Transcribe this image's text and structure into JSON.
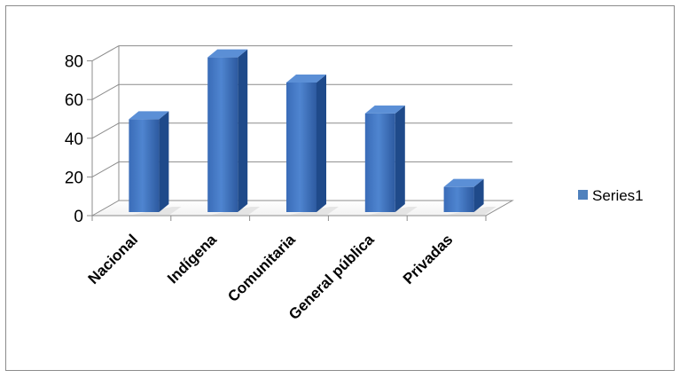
{
  "chart_data": {
    "type": "bar",
    "style": "3d-column",
    "categories": [
      "Nacional",
      "Indígena",
      "Comunitaria",
      "General pública",
      "Privadas"
    ],
    "series": [
      {
        "name": "Series1",
        "values": [
          48,
          80,
          67,
          51,
          13
        ],
        "color": "#4f81bd"
      }
    ],
    "title": "",
    "xlabel": "",
    "ylabel": "",
    "ylim": [
      0,
      80
    ],
    "yticks": [
      0,
      20,
      40,
      60,
      80
    ],
    "grid": true,
    "legend": "right"
  }
}
